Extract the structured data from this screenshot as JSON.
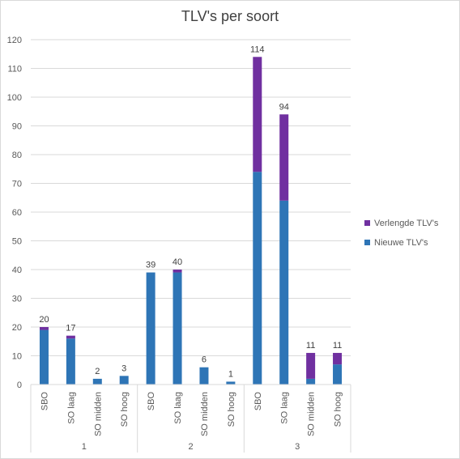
{
  "chart_data": {
    "type": "bar",
    "stacked": true,
    "title": "TLV's per soort",
    "xlabel": "",
    "ylabel": "",
    "ylim": [
      0,
      120
    ],
    "yticks": [
      0,
      10,
      20,
      30,
      40,
      50,
      60,
      70,
      80,
      90,
      100,
      110,
      120
    ],
    "grid": true,
    "legend_position": "right",
    "groups": [
      {
        "label": "1",
        "categories": [
          "SBO",
          "SO laag",
          "SO midden",
          "SO hoog"
        ]
      },
      {
        "label": "2",
        "categories": [
          "SBO",
          "SO laag",
          "SO midden",
          "SO hoog"
        ]
      },
      {
        "label": "3",
        "categories": [
          "SBO",
          "SO laag",
          "SO midden",
          "SO hoog"
        ]
      }
    ],
    "series": [
      {
        "name": "Nieuwe TLV's",
        "color": "#2e75b6",
        "values": [
          19,
          16,
          2,
          3,
          39,
          39,
          6,
          1,
          74,
          64,
          2,
          7
        ]
      },
      {
        "name": "Verlengde TLV's",
        "color": "#7030a0",
        "values": [
          1,
          1,
          0,
          0,
          0,
          1,
          0,
          0,
          40,
          30,
          9,
          4
        ]
      }
    ],
    "totals": [
      "20",
      "17",
      "2",
      "3",
      "39",
      "40",
      "6",
      "1",
      "114",
      "94",
      "11",
      "11"
    ]
  }
}
